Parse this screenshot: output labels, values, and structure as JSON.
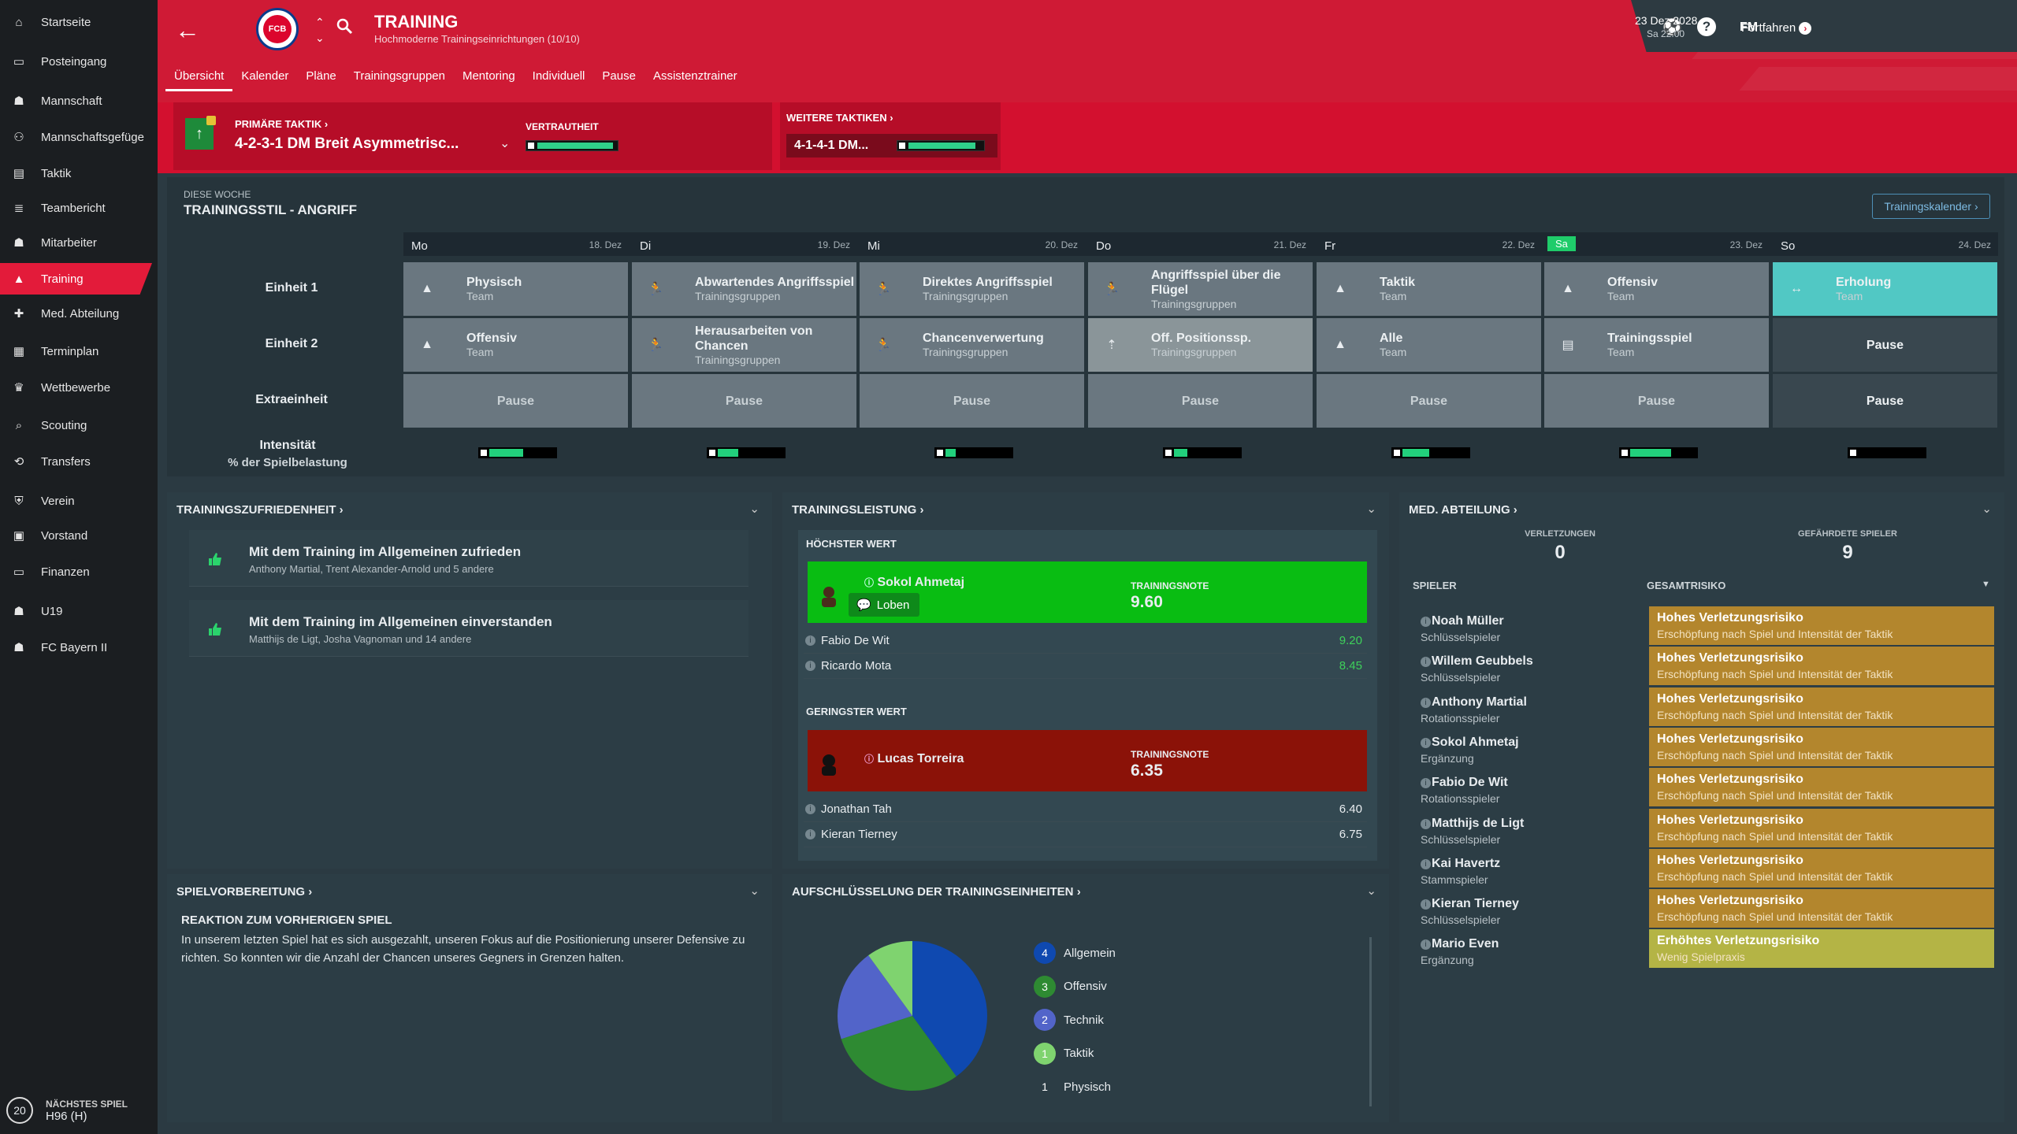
{
  "sidebar": {
    "items": [
      {
        "label": "Startseite",
        "icon": "home-icon"
      },
      {
        "label": "Posteingang",
        "icon": "inbox-icon"
      },
      {
        "label": "Mannschaft",
        "icon": "squad-icon"
      },
      {
        "label": "Mannschaftsgefüge",
        "icon": "dynamics-icon"
      },
      {
        "label": "Taktik",
        "icon": "tactics-icon"
      },
      {
        "label": "Teambericht",
        "icon": "report-icon"
      },
      {
        "label": "Mitarbeiter",
        "icon": "staff-icon"
      },
      {
        "label": "Training",
        "icon": "training-icon",
        "active": true
      },
      {
        "label": "Med. Abteilung",
        "icon": "medical-icon"
      },
      {
        "label": "Terminplan",
        "icon": "calendar-icon"
      },
      {
        "label": "Wettbewerbe",
        "icon": "trophy-icon"
      },
      {
        "label": "Scouting",
        "icon": "scouting-icon"
      },
      {
        "label": "Transfers",
        "icon": "transfers-icon"
      },
      {
        "label": "Verein",
        "icon": "club-icon"
      },
      {
        "label": "Vorstand",
        "icon": "board-icon"
      },
      {
        "label": "Finanzen",
        "icon": "finances-icon"
      },
      {
        "label": "U19",
        "icon": "u19-icon"
      },
      {
        "label": "FC Bayern II",
        "icon": "reserve-team-icon"
      }
    ],
    "next_match": {
      "label": "NÄCHSTES SPIEL",
      "value": "H96 (H)",
      "round": "20"
    }
  },
  "header": {
    "title": "TRAINING",
    "subtitle": "Hochmoderne Trainingseinrichtungen (10/10)",
    "crest_text": "FCB",
    "tabs": [
      "Übersicht",
      "Kalender",
      "Pläne",
      "Trainingsgruppen",
      "Mentoring",
      "Individuell",
      "Pause",
      "Assistenztrainer"
    ],
    "game_label": "FM",
    "help_label": "?",
    "date": "23 Dez 2028",
    "time": "Sa 22:00",
    "continue_label": "Fortfahren"
  },
  "tactics": {
    "primary_label": "PRIMÄRE TAKTIK",
    "primary_value": "4-2-3-1 DM Breit Asymmetrisc...",
    "familiarity_label": "VERTRAUTHEIT",
    "primary_familiarity": 0.95,
    "others_label": "WEITERE TAKTIKEN",
    "other_value": "4-1-4-1 DM...",
    "other_familiarity": 0.9
  },
  "week": {
    "subtitle": "DIESE WOCHE",
    "title": "TRAININGSSTIL - ANGRIFF",
    "calendar_button": "Trainingskalender",
    "days": [
      {
        "name": "Mo",
        "date": "18. Dez"
      },
      {
        "name": "Di",
        "date": "19. Dez"
      },
      {
        "name": "Mi",
        "date": "20. Dez"
      },
      {
        "name": "Do",
        "date": "21. Dez"
      },
      {
        "name": "Fr",
        "date": "22. Dez"
      },
      {
        "name": "Sa",
        "date": "23. Dez",
        "today": true
      },
      {
        "name": "So",
        "date": "24. Dez"
      }
    ],
    "rows": [
      "Einheit 1",
      "Einheit 2",
      "Extraeinheit"
    ],
    "sessions": [
      [
        {
          "name": "Physisch",
          "sub": "Team",
          "icon": "team-icon"
        },
        {
          "name": "Abwartendes Angriffsspiel",
          "sub": "Trainingsgruppen",
          "icon": "run-icon"
        },
        {
          "name": "Direktes Angriffsspiel",
          "sub": "Trainingsgruppen",
          "icon": "run-icon"
        },
        {
          "name": "Angriffsspiel über die Flügel",
          "sub": "Trainingsgruppen",
          "icon": "run-icon"
        },
        {
          "name": "Taktik",
          "sub": "Team",
          "icon": "team-icon"
        },
        {
          "name": "Offensiv",
          "sub": "Team",
          "icon": "team-icon"
        },
        {
          "name": "Erholung",
          "sub": "Team",
          "icon": "recovery-icon",
          "style": "teal"
        }
      ],
      [
        {
          "name": "Offensiv",
          "sub": "Team",
          "icon": "team-icon"
        },
        {
          "name": "Herausarbeiten von Chancen",
          "sub": "Trainingsgruppen",
          "icon": "run-icon"
        },
        {
          "name": "Chancenverwertung",
          "sub": "Trainingsgruppen",
          "icon": "run-icon"
        },
        {
          "name": "Off. Positionssp.",
          "sub": "Trainingsgruppen",
          "icon": "position-icon",
          "style": "light"
        },
        {
          "name": "Alle",
          "sub": "Team",
          "icon": "team-icon"
        },
        {
          "name": "Trainingsspiel",
          "sub": "Team",
          "icon": "match-icon"
        },
        {
          "name": "Pause",
          "sub": "",
          "icon": "",
          "style": "dark"
        }
      ],
      [
        {
          "name": "Pause",
          "sub": "",
          "icon": "",
          "style": "pause"
        },
        {
          "name": "Pause",
          "sub": "",
          "icon": "",
          "style": "pause"
        },
        {
          "name": "Pause",
          "sub": "",
          "icon": "",
          "style": "pause"
        },
        {
          "name": "Pause",
          "sub": "",
          "icon": "",
          "style": "pause"
        },
        {
          "name": "Pause",
          "sub": "",
          "icon": "",
          "style": "pause"
        },
        {
          "name": "Pause",
          "sub": "",
          "icon": "",
          "style": "pause"
        },
        {
          "name": "Pause",
          "sub": "",
          "icon": "",
          "style": "dark"
        }
      ]
    ],
    "intensity_label": "Intensität",
    "intensity_sub": "% der Spielbelastung",
    "intensity": [
      0.5,
      0.3,
      0.15,
      0.2,
      0.4,
      0.6,
      0.0
    ]
  },
  "satisfaction": {
    "title": "TRAININGSZUFRIEDENHEIT",
    "items": [
      {
        "title": "Mit dem Training im Allgemeinen zufrieden",
        "sub": "Anthony Martial, Trent Alexander-Arnold und 5 andere"
      },
      {
        "title": "Mit dem Training im Allgemeinen einverstanden",
        "sub": "Matthijs de Ligt, Josha Vagnoman und 14 andere"
      }
    ]
  },
  "performance": {
    "title": "TRAININGSLEISTUNG",
    "highest_label": "HÖCHSTER WERT",
    "lowest_label": "GERINGSTER WERT",
    "rating_label": "TRAININGSNOTE",
    "praise_label": "Loben",
    "top": {
      "name": "Sokol Ahmetaj",
      "rating": "9.60"
    },
    "top_others": [
      {
        "name": "Fabio De Wit",
        "rating": "9.20"
      },
      {
        "name": "Ricardo Mota",
        "rating": "8.45"
      }
    ],
    "bottom": {
      "name": "Lucas Torreira",
      "rating": "6.35"
    },
    "bottom_others": [
      {
        "name": "Jonathan Tah",
        "rating": "6.40"
      },
      {
        "name": "Kieran Tierney",
        "rating": "6.75"
      }
    ]
  },
  "medical": {
    "title": "MED. ABTEILUNG",
    "injuries_label": "VERLETZUNGEN",
    "injuries": "0",
    "at_risk_label": "GEFÄHRDETE SPIELER",
    "at_risk": "9",
    "col_player": "SPIELER",
    "col_risk": "GESAMTRISIKO",
    "players": [
      {
        "name": "Noah Müller",
        "role": "Schlüsselspieler",
        "risk": "Hohes Verletzungsrisiko",
        "reason": "Erschöpfung nach Spiel und Intensität der Taktik"
      },
      {
        "name": "Willem Geubbels",
        "role": "Schlüsselspieler",
        "risk": "Hohes Verletzungsrisiko",
        "reason": "Erschöpfung nach Spiel und Intensität der Taktik"
      },
      {
        "name": "Anthony Martial",
        "role": "Rotationsspieler",
        "risk": "Hohes Verletzungsrisiko",
        "reason": "Erschöpfung nach Spiel und Intensität der Taktik"
      },
      {
        "name": "Sokol Ahmetaj",
        "role": "Ergänzung",
        "risk": "Hohes Verletzungsrisiko",
        "reason": "Erschöpfung nach Spiel und Intensität der Taktik"
      },
      {
        "name": "Fabio De Wit",
        "role": "Rotationsspieler",
        "risk": "Hohes Verletzungsrisiko",
        "reason": "Erschöpfung nach Spiel und Intensität der Taktik"
      },
      {
        "name": "Matthijs de Ligt",
        "role": "Schlüsselspieler",
        "risk": "Hohes Verletzungsrisiko",
        "reason": "Erschöpfung nach Spiel und Intensität der Taktik"
      },
      {
        "name": "Kai Havertz",
        "role": "Stammspieler",
        "risk": "Hohes Verletzungsrisiko",
        "reason": "Erschöpfung nach Spiel und Intensität der Taktik"
      },
      {
        "name": "Kieran Tierney",
        "role": "Schlüsselspieler",
        "risk": "Hohes Verletzungsrisiko",
        "reason": "Erschöpfung nach Spiel und Intensität der Taktik"
      },
      {
        "name": "Mario Even",
        "role": "Ergänzung",
        "risk": "Erhöhtes Verletzungsrisiko",
        "reason": "Wenig Spielpraxis",
        "level": "elevated"
      }
    ]
  },
  "prep": {
    "title": "SPIELVORBEREITUNG",
    "heading": "REAKTION ZUM VORHERIGEN SPIEL",
    "text": "In unserem letzten Spiel hat es sich ausgezahlt, unseren Fokus auf die Positionierung unserer Defensive zu richten. So konnten wir die Anzahl der Chancen unseres Gegners in Grenzen halten."
  },
  "breakdown": {
    "title": "AUFSCHLÜSSELUNG DER TRAININGSEINHEITEN",
    "chart_data": {
      "type": "pie",
      "categories": [
        "Allgemein",
        "Offensiv",
        "Technik",
        "Taktik",
        "Physisch"
      ],
      "values": [
        4,
        3,
        2,
        1,
        1
      ],
      "colors": [
        "#0f49b0",
        "#2e8a32",
        "#5264c9",
        "#7fd36f",
        "#c9d4d9"
      ]
    }
  },
  "colors": {
    "accent": "#e31b3a",
    "success": "#09bd12",
    "danger": "#8b1208",
    "high_risk": "#b3862d",
    "elevated_risk": "#b4b445"
  }
}
